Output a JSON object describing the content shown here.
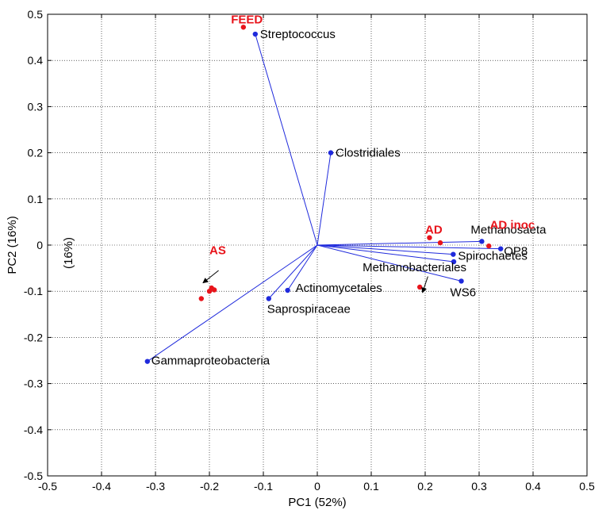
{
  "chart_data": {
    "type": "scatter",
    "subtype": "pca-biplot",
    "title": "",
    "xlabel": "PC1 (52%)",
    "ylabel": "PC2 (16%)",
    "ylabel_extra": "(16%)",
    "xlim": [
      -0.5,
      0.5
    ],
    "ylim": [
      -0.5,
      0.5
    ],
    "xticks": [
      -0.5,
      -0.4,
      -0.3,
      -0.2,
      -0.1,
      0,
      0.1,
      0.2,
      0.3,
      0.4,
      0.5
    ],
    "yticks": [
      -0.5,
      -0.4,
      -0.3,
      -0.2,
      -0.1,
      0,
      0.1,
      0.2,
      0.3,
      0.4,
      0.5
    ],
    "tick_labels_x": [
      "-0.5",
      "-0.4",
      "-0.3",
      "-0.2",
      "-0.1",
      "0",
      "0.1",
      "0.2",
      "0.3",
      "0.4",
      "0.5"
    ],
    "tick_labels_y": [
      "-0.5",
      "-0.4",
      "-0.3",
      "-0.2",
      "-0.1",
      "0",
      "0.1",
      "0.2",
      "0.3",
      "0.4",
      "0.5"
    ],
    "grid": true,
    "colors": {
      "vector": "#1f2adc",
      "sample": "#e8141b",
      "arrow": "#000000"
    },
    "loadings": [
      {
        "name": "Streptococcus",
        "x": -0.115,
        "y": 0.457
      },
      {
        "name": "Clostridiales",
        "x": 0.025,
        "y": 0.2
      },
      {
        "name": "Methanosaeta",
        "x": 0.305,
        "y": 0.008
      },
      {
        "name": "OP8",
        "x": 0.34,
        "y": -0.008
      },
      {
        "name": "Spirochaetes",
        "x": 0.252,
        "y": -0.02
      },
      {
        "name": "Methanobacteriales",
        "x": 0.253,
        "y": -0.036
      },
      {
        "name": "WS6",
        "x": 0.267,
        "y": -0.078
      },
      {
        "name": "Actinomycetales",
        "x": -0.055,
        "y": -0.098
      },
      {
        "name": "Saprospiraceae",
        "x": -0.09,
        "y": -0.116
      },
      {
        "name": "Gammaproteobacteria",
        "x": -0.315,
        "y": -0.252
      }
    ],
    "samples": [
      {
        "x": -0.137,
        "y": 0.472
      },
      {
        "x": 0.208,
        "y": 0.016
      },
      {
        "x": 0.228,
        "y": 0.005
      },
      {
        "x": 0.318,
        "y": -0.002
      },
      {
        "x": 0.19,
        "y": -0.091
      },
      {
        "x": -0.196,
        "y": -0.093
      },
      {
        "x": -0.191,
        "y": -0.097
      },
      {
        "x": -0.2,
        "y": -0.1
      },
      {
        "x": -0.215,
        "y": -0.116
      }
    ],
    "group_labels": [
      {
        "text": "FEED",
        "x": -0.16,
        "y": 0.48
      },
      {
        "text": "AD",
        "x": 0.2,
        "y": 0.025
      },
      {
        "text": "AD inoc",
        "x": 0.32,
        "y": 0.035
      },
      {
        "text": "AS",
        "x": -0.2,
        "y": -0.02
      }
    ],
    "arrows": [
      {
        "from": [
          -0.183,
          -0.055
        ],
        "to": [
          -0.212,
          -0.082
        ]
      },
      {
        "from": [
          0.205,
          -0.068
        ],
        "to": [
          0.195,
          -0.103
        ]
      }
    ]
  }
}
